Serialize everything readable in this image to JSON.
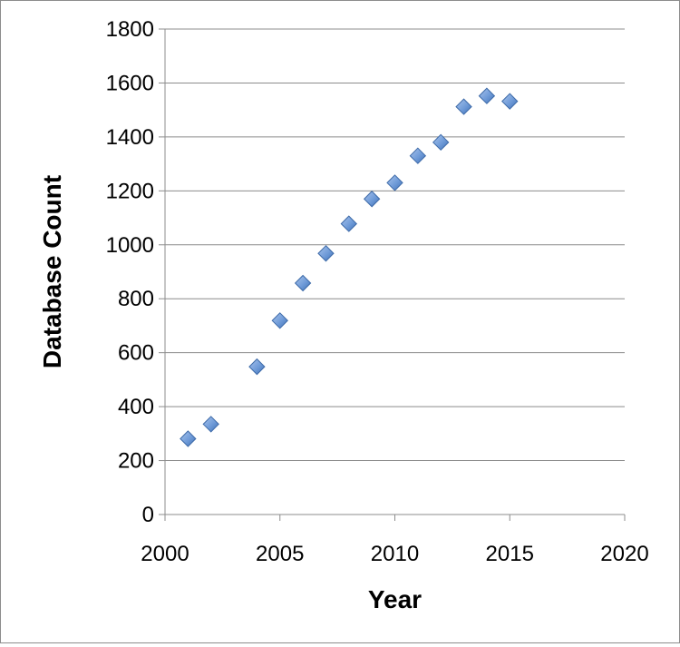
{
  "chart_data": {
    "type": "scatter",
    "xlabel": "Year",
    "ylabel": "Database Count",
    "xlim": [
      2000,
      2020
    ],
    "ylim": [
      0,
      1800
    ],
    "x_ticks": [
      2000,
      2005,
      2010,
      2015,
      2020
    ],
    "y_ticks": [
      0,
      200,
      400,
      600,
      800,
      1000,
      1200,
      1400,
      1600,
      1800
    ],
    "grid": "horizontal",
    "legend": "none",
    "series": [
      {
        "marker": "diamond",
        "color": "#4f81bd",
        "points": [
          {
            "x": 2001,
            "y": 281
          },
          {
            "x": 2002,
            "y": 335
          },
          {
            "x": 2004,
            "y": 548
          },
          {
            "x": 2005,
            "y": 719
          },
          {
            "x": 2006,
            "y": 858
          },
          {
            "x": 2007,
            "y": 968
          },
          {
            "x": 2008,
            "y": 1078
          },
          {
            "x": 2009,
            "y": 1170
          },
          {
            "x": 2010,
            "y": 1230
          },
          {
            "x": 2011,
            "y": 1330
          },
          {
            "x": 2012,
            "y": 1380
          },
          {
            "x": 2013,
            "y": 1512
          },
          {
            "x": 2014,
            "y": 1552
          },
          {
            "x": 2015,
            "y": 1532
          }
        ]
      }
    ]
  }
}
